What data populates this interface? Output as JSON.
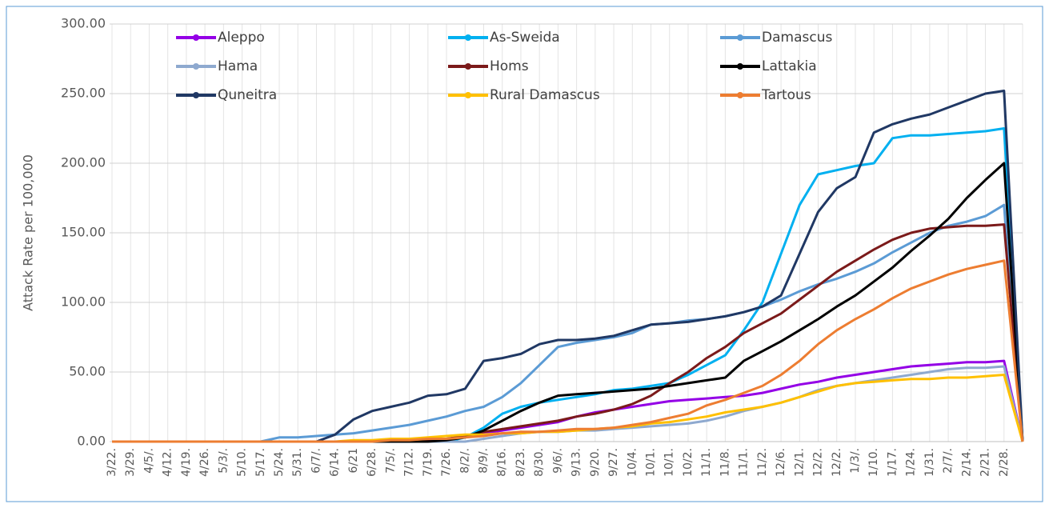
{
  "chart_data": {
    "type": "line",
    "y_label": "Attack Rate per 100,000",
    "categories": [
      "3/22.",
      "3/29.",
      "4/5/.",
      "4/12.",
      "4/19.",
      "4/26.",
      "5/3/.",
      "5/10.",
      "5/17.",
      "5/24.",
      "5/31.",
      "6/7/.",
      "6/14.",
      "6/21",
      "6/28.",
      "7/5/.",
      "7/12.",
      "7/19.",
      "7/26.",
      "8/2/.",
      "8/9/.",
      "8/16.",
      "8/23.",
      "8/30.",
      "9/6/.",
      "9/13.",
      "9/20.",
      "9/27.",
      "10/4.",
      "10/1.",
      "10/1.",
      "10/2.",
      "11/1.",
      "11/8.",
      "11/1.",
      "11/2.",
      "12/6.",
      "12/1.",
      "12/2.",
      "12/2.",
      "1/3/.",
      "1/10.",
      "1/17.",
      "1/24.",
      "1/31.",
      "2/7/.",
      "2/14.",
      "2/21.",
      "2/28.",
      null
    ],
    "ylim": [
      0,
      300
    ],
    "yticks": [
      {
        "value": 0,
        "label": "0.00"
      },
      {
        "value": 50,
        "label": "50.00"
      },
      {
        "value": 100,
        "label": "100.00"
      },
      {
        "value": 150,
        "label": "150.00"
      },
      {
        "value": 200,
        "label": "200.00"
      },
      {
        "value": 250,
        "label": "250.00"
      },
      {
        "value": 300,
        "label": "300.00"
      }
    ],
    "grid": true,
    "series": [
      {
        "name": "Aleppo",
        "color": "#9400e6",
        "values": [
          0,
          0,
          0,
          0,
          0,
          0,
          0,
          0,
          0,
          0,
          0,
          0,
          0,
          0,
          0,
          0,
          0,
          0,
          1,
          3,
          6,
          8,
          10,
          12,
          14,
          18,
          21,
          23,
          25,
          27,
          29,
          30,
          31,
          32,
          33,
          35,
          38,
          41,
          43,
          46,
          48,
          50,
          52,
          54,
          55,
          56,
          57,
          57,
          58,
          0
        ]
      },
      {
        "name": "As-Sweida",
        "color": "#00b0f0",
        "values": [
          0,
          0,
          0,
          0,
          0,
          0,
          0,
          0,
          0,
          0,
          0,
          0,
          0,
          0,
          0,
          0,
          0,
          0,
          0,
          3,
          10,
          20,
          25,
          28,
          30,
          32,
          34,
          37,
          38,
          40,
          42,
          48,
          55,
          62,
          80,
          100,
          135,
          170,
          192,
          195,
          198,
          200,
          218,
          220,
          220,
          221,
          222,
          223,
          225,
          0
        ]
      },
      {
        "name": "Damascus",
        "color": "#5b9bd5",
        "values": [
          0,
          0,
          0,
          0,
          0,
          0,
          0,
          0,
          0,
          3,
          3,
          4,
          5,
          6,
          8,
          10,
          12,
          15,
          18,
          22,
          25,
          32,
          42,
          55,
          68,
          71,
          73,
          75,
          78,
          84,
          85,
          87,
          88,
          90,
          93,
          97,
          102,
          108,
          113,
          117,
          122,
          128,
          136,
          143,
          150,
          155,
          158,
          162,
          170,
          0
        ]
      },
      {
        "name": "Hama",
        "color": "#8ea9cf",
        "values": [
          0,
          0,
          0,
          0,
          0,
          0,
          0,
          0,
          0,
          0,
          0,
          0,
          0,
          0,
          0,
          0,
          0,
          0,
          0,
          0,
          2,
          4,
          6,
          7,
          7,
          8,
          8,
          9,
          10,
          11,
          12,
          13,
          15,
          18,
          22,
          25,
          28,
          32,
          37,
          40,
          42,
          44,
          46,
          48,
          50,
          52,
          53,
          53,
          54,
          0
        ]
      },
      {
        "name": "Homs",
        "color": "#7b1a1a",
        "values": [
          0,
          0,
          0,
          0,
          0,
          0,
          0,
          0,
          0,
          0,
          0,
          0,
          0,
          0,
          0,
          0,
          0,
          1,
          2,
          4,
          7,
          9,
          11,
          13,
          15,
          18,
          20,
          23,
          27,
          33,
          42,
          50,
          60,
          68,
          78,
          85,
          92,
          102,
          112,
          122,
          130,
          138,
          145,
          150,
          153,
          154,
          155,
          155,
          156,
          0
        ]
      },
      {
        "name": "Lattakia",
        "color": "#000000",
        "values": [
          0,
          0,
          0,
          0,
          0,
          0,
          0,
          0,
          0,
          0,
          0,
          0,
          0,
          0,
          0,
          0,
          0,
          0,
          1,
          3,
          8,
          15,
          22,
          28,
          33,
          34,
          35,
          36,
          37,
          38,
          40,
          42,
          44,
          46,
          58,
          65,
          72,
          80,
          88,
          97,
          105,
          115,
          125,
          137,
          148,
          160,
          175,
          188,
          200,
          0
        ]
      },
      {
        "name": "Quneitra",
        "color": "#203864",
        "values": [
          0,
          0,
          0,
          0,
          0,
          0,
          0,
          0,
          0,
          0,
          0,
          0,
          5,
          16,
          22,
          25,
          28,
          33,
          34,
          38,
          58,
          60,
          63,
          70,
          73,
          73,
          74,
          76,
          80,
          84,
          85,
          86,
          88,
          90,
          93,
          97,
          105,
          135,
          165,
          182,
          190,
          222,
          228,
          232,
          235,
          240,
          245,
          250,
          252,
          0
        ]
      },
      {
        "name": "Rural Damascus",
        "color": "#ffc000",
        "values": [
          0,
          0,
          0,
          0,
          0,
          0,
          0,
          0,
          0,
          0,
          0,
          0,
          0,
          1,
          1,
          2,
          2,
          3,
          4,
          5,
          5,
          6,
          6,
          7,
          7,
          8,
          9,
          10,
          11,
          13,
          14,
          16,
          18,
          21,
          23,
          25,
          28,
          32,
          36,
          40,
          42,
          43,
          44,
          45,
          45,
          46,
          46,
          47,
          48,
          0
        ]
      },
      {
        "name": "Tartous",
        "color": "#ed7d31",
        "values": [
          0,
          0,
          0,
          0,
          0,
          0,
          0,
          0,
          0,
          0,
          0,
          0,
          0,
          0,
          0,
          1,
          1,
          2,
          2,
          3,
          4,
          6,
          7,
          7,
          8,
          9,
          9,
          10,
          12,
          14,
          17,
          20,
          26,
          30,
          35,
          40,
          48,
          58,
          70,
          80,
          88,
          95,
          103,
          110,
          115,
          120,
          124,
          127,
          130,
          0
        ]
      }
    ]
  }
}
